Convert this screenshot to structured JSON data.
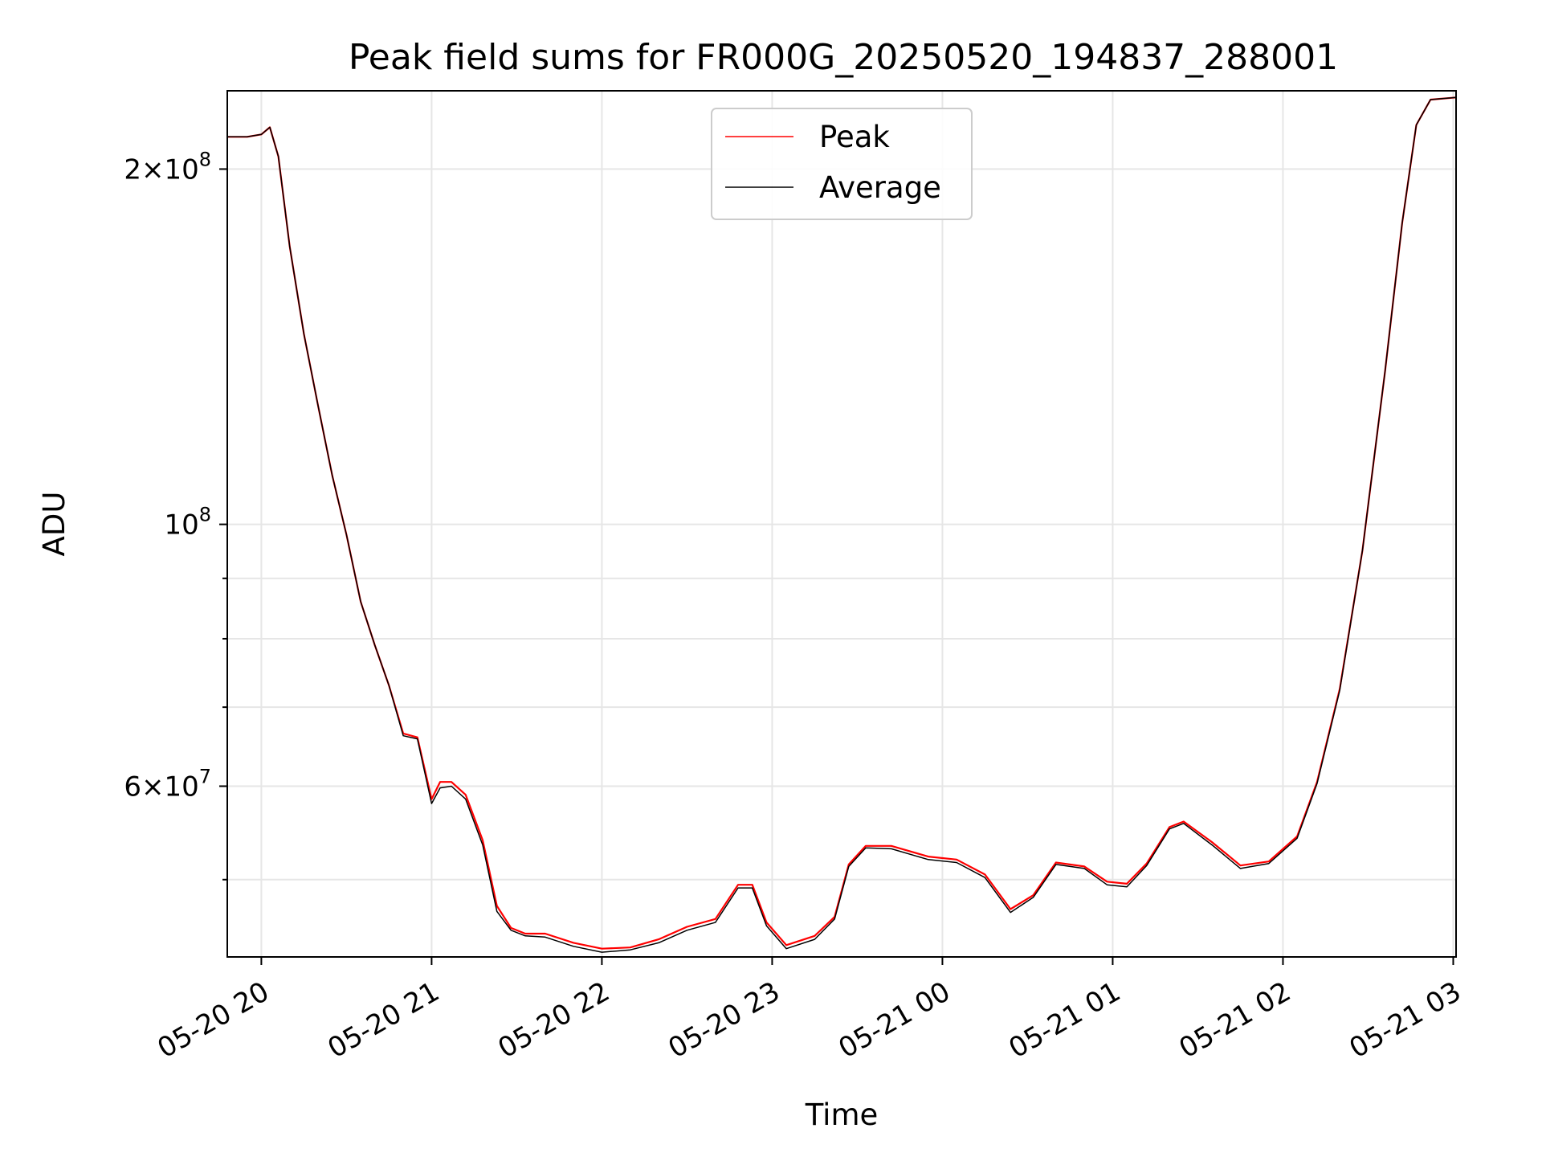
{
  "chart_data": {
    "type": "line",
    "title": "Peak field sums for FR000G_20250520_194837_288001",
    "xlabel": "Time",
    "ylabel": "ADU",
    "yscale": "log",
    "ylim": [
      43000000,
      233000000
    ],
    "xlim": [
      "2025-05-20 19:48",
      "2025-05-21 03:01"
    ],
    "grid": true,
    "legend": "top-center",
    "x_ticks": [
      {
        "t": "2025-05-20 20:00",
        "label": "05-20 20"
      },
      {
        "t": "2025-05-20 21:00",
        "label": "05-20 21"
      },
      {
        "t": "2025-05-20 22:00",
        "label": "05-20 22"
      },
      {
        "t": "2025-05-20 23:00",
        "label": "05-20 23"
      },
      {
        "t": "2025-05-21 00:00",
        "label": "05-21 00"
      },
      {
        "t": "2025-05-21 01:00",
        "label": "05-21 01"
      },
      {
        "t": "2025-05-21 02:00",
        "label": "05-21 02"
      },
      {
        "t": "2025-05-21 03:00",
        "label": "05-21 03"
      }
    ],
    "y_major_ticks": [
      {
        "value": 60000000,
        "mant": "6",
        "exp": "7"
      },
      {
        "value": 100000000,
        "mant": "",
        "exp": "8"
      },
      {
        "value": 200000000,
        "mant": "2",
        "exp": "8"
      }
    ],
    "y_minor_ticks": [
      50000000,
      70000000,
      80000000,
      90000000
    ],
    "series": [
      {
        "name": "Peak",
        "color": "#ff0000",
        "x": [
          "2025-05-20 19:48",
          "2025-05-20 19:55",
          "2025-05-20 20:00",
          "2025-05-20 20:03",
          "2025-05-20 20:06",
          "2025-05-20 20:10",
          "2025-05-20 20:15",
          "2025-05-20 20:20",
          "2025-05-20 20:25",
          "2025-05-20 20:30",
          "2025-05-20 20:35",
          "2025-05-20 20:40",
          "2025-05-20 20:45",
          "2025-05-20 20:50",
          "2025-05-20 20:55",
          "2025-05-20 21:00",
          "2025-05-20 21:03",
          "2025-05-20 21:07",
          "2025-05-20 21:12",
          "2025-05-20 21:18",
          "2025-05-20 21:23",
          "2025-05-20 21:28",
          "2025-05-20 21:33",
          "2025-05-20 21:40",
          "2025-05-20 21:50",
          "2025-05-20 22:00",
          "2025-05-20 22:10",
          "2025-05-20 22:20",
          "2025-05-20 22:30",
          "2025-05-20 22:40",
          "2025-05-20 22:48",
          "2025-05-20 22:53",
          "2025-05-20 22:58",
          "2025-05-20 23:05",
          "2025-05-20 23:15",
          "2025-05-20 23:22",
          "2025-05-20 23:27",
          "2025-05-20 23:33",
          "2025-05-20 23:42",
          "2025-05-20 23:55",
          "2025-05-21 00:05",
          "2025-05-21 00:15",
          "2025-05-21 00:24",
          "2025-05-21 00:32",
          "2025-05-21 00:40",
          "2025-05-21 00:50",
          "2025-05-21 00:58",
          "2025-05-21 01:05",
          "2025-05-21 01:12",
          "2025-05-21 01:20",
          "2025-05-21 01:25",
          "2025-05-21 01:35",
          "2025-05-21 01:45",
          "2025-05-21 01:55",
          "2025-05-21 02:05",
          "2025-05-21 02:12",
          "2025-05-21 02:20",
          "2025-05-21 02:28",
          "2025-05-21 02:36",
          "2025-05-21 02:42",
          "2025-05-21 02:47",
          "2025-05-21 02:52",
          "2025-05-21 03:01"
        ],
        "y": [
          213000000,
          213000000,
          214000000,
          217000000,
          205000000,
          172000000,
          145000000,
          126000000,
          110000000,
          98000000,
          86000000,
          79000000,
          73000000,
          66500000,
          66000000,
          58500000,
          60500000,
          60500000,
          59000000,
          54000000,
          47500000,
          45500000,
          45000000,
          45000000,
          44200000,
          43700000,
          43800000,
          44500000,
          45600000,
          46300000,
          49500000,
          49500000,
          46000000,
          44000000,
          44800000,
          46500000,
          51500000,
          53400000,
          53400000,
          52300000,
          52000000,
          50500000,
          47200000,
          48500000,
          51700000,
          51300000,
          49800000,
          49600000,
          51600000,
          55400000,
          56000000,
          53800000,
          51400000,
          51800000,
          54400000,
          60500000,
          72500000,
          95000000,
          135000000,
          180000000,
          218000000,
          229000000,
          230000000
        ]
      },
      {
        "name": "Average",
        "color": "#000000",
        "x": [
          "2025-05-20 19:48",
          "2025-05-20 19:55",
          "2025-05-20 20:00",
          "2025-05-20 20:03",
          "2025-05-20 20:06",
          "2025-05-20 20:10",
          "2025-05-20 20:15",
          "2025-05-20 20:20",
          "2025-05-20 20:25",
          "2025-05-20 20:30",
          "2025-05-20 20:35",
          "2025-05-20 20:40",
          "2025-05-20 20:45",
          "2025-05-20 20:50",
          "2025-05-20 20:55",
          "2025-05-20 21:00",
          "2025-05-20 21:03",
          "2025-05-20 21:07",
          "2025-05-20 21:12",
          "2025-05-20 21:18",
          "2025-05-20 21:23",
          "2025-05-20 21:28",
          "2025-05-20 21:33",
          "2025-05-20 21:40",
          "2025-05-20 21:50",
          "2025-05-20 22:00",
          "2025-05-20 22:10",
          "2025-05-20 22:20",
          "2025-05-20 22:30",
          "2025-05-20 22:40",
          "2025-05-20 22:48",
          "2025-05-20 22:53",
          "2025-05-20 22:58",
          "2025-05-20 23:05",
          "2025-05-20 23:15",
          "2025-05-20 23:22",
          "2025-05-20 23:27",
          "2025-05-20 23:33",
          "2025-05-20 23:42",
          "2025-05-20 23:55",
          "2025-05-21 00:05",
          "2025-05-21 00:15",
          "2025-05-21 00:24",
          "2025-05-21 00:32",
          "2025-05-21 00:40",
          "2025-05-21 00:50",
          "2025-05-21 00:58",
          "2025-05-21 01:05",
          "2025-05-21 01:12",
          "2025-05-21 01:20",
          "2025-05-21 01:25",
          "2025-05-21 01:35",
          "2025-05-21 01:45",
          "2025-05-21 01:55",
          "2025-05-21 02:05",
          "2025-05-21 02:12",
          "2025-05-21 02:20",
          "2025-05-21 02:28",
          "2025-05-21 02:36",
          "2025-05-21 02:42",
          "2025-05-21 02:47",
          "2025-05-21 02:52",
          "2025-05-21 03:01"
        ],
        "y": [
          213000000,
          213000000,
          214000000,
          217000000,
          205000000,
          172000000,
          145000000,
          126000000,
          110000000,
          98000000,
          86000000,
          79000000,
          73000000,
          66200000,
          65800000,
          58000000,
          59800000,
          60000000,
          58500000,
          53500000,
          47000000,
          45300000,
          44800000,
          44700000,
          43900000,
          43400000,
          43600000,
          44200000,
          45300000,
          46000000,
          49200000,
          49200000,
          45700000,
          43700000,
          44500000,
          46300000,
          51300000,
          53200000,
          53100000,
          52000000,
          51700000,
          50200000,
          46900000,
          48300000,
          51500000,
          51100000,
          49500000,
          49300000,
          51400000,
          55200000,
          55800000,
          53500000,
          51100000,
          51600000,
          54200000,
          60300000,
          72300000,
          95000000,
          135000000,
          180000000,
          218000000,
          229000000,
          230000000
        ]
      }
    ]
  }
}
